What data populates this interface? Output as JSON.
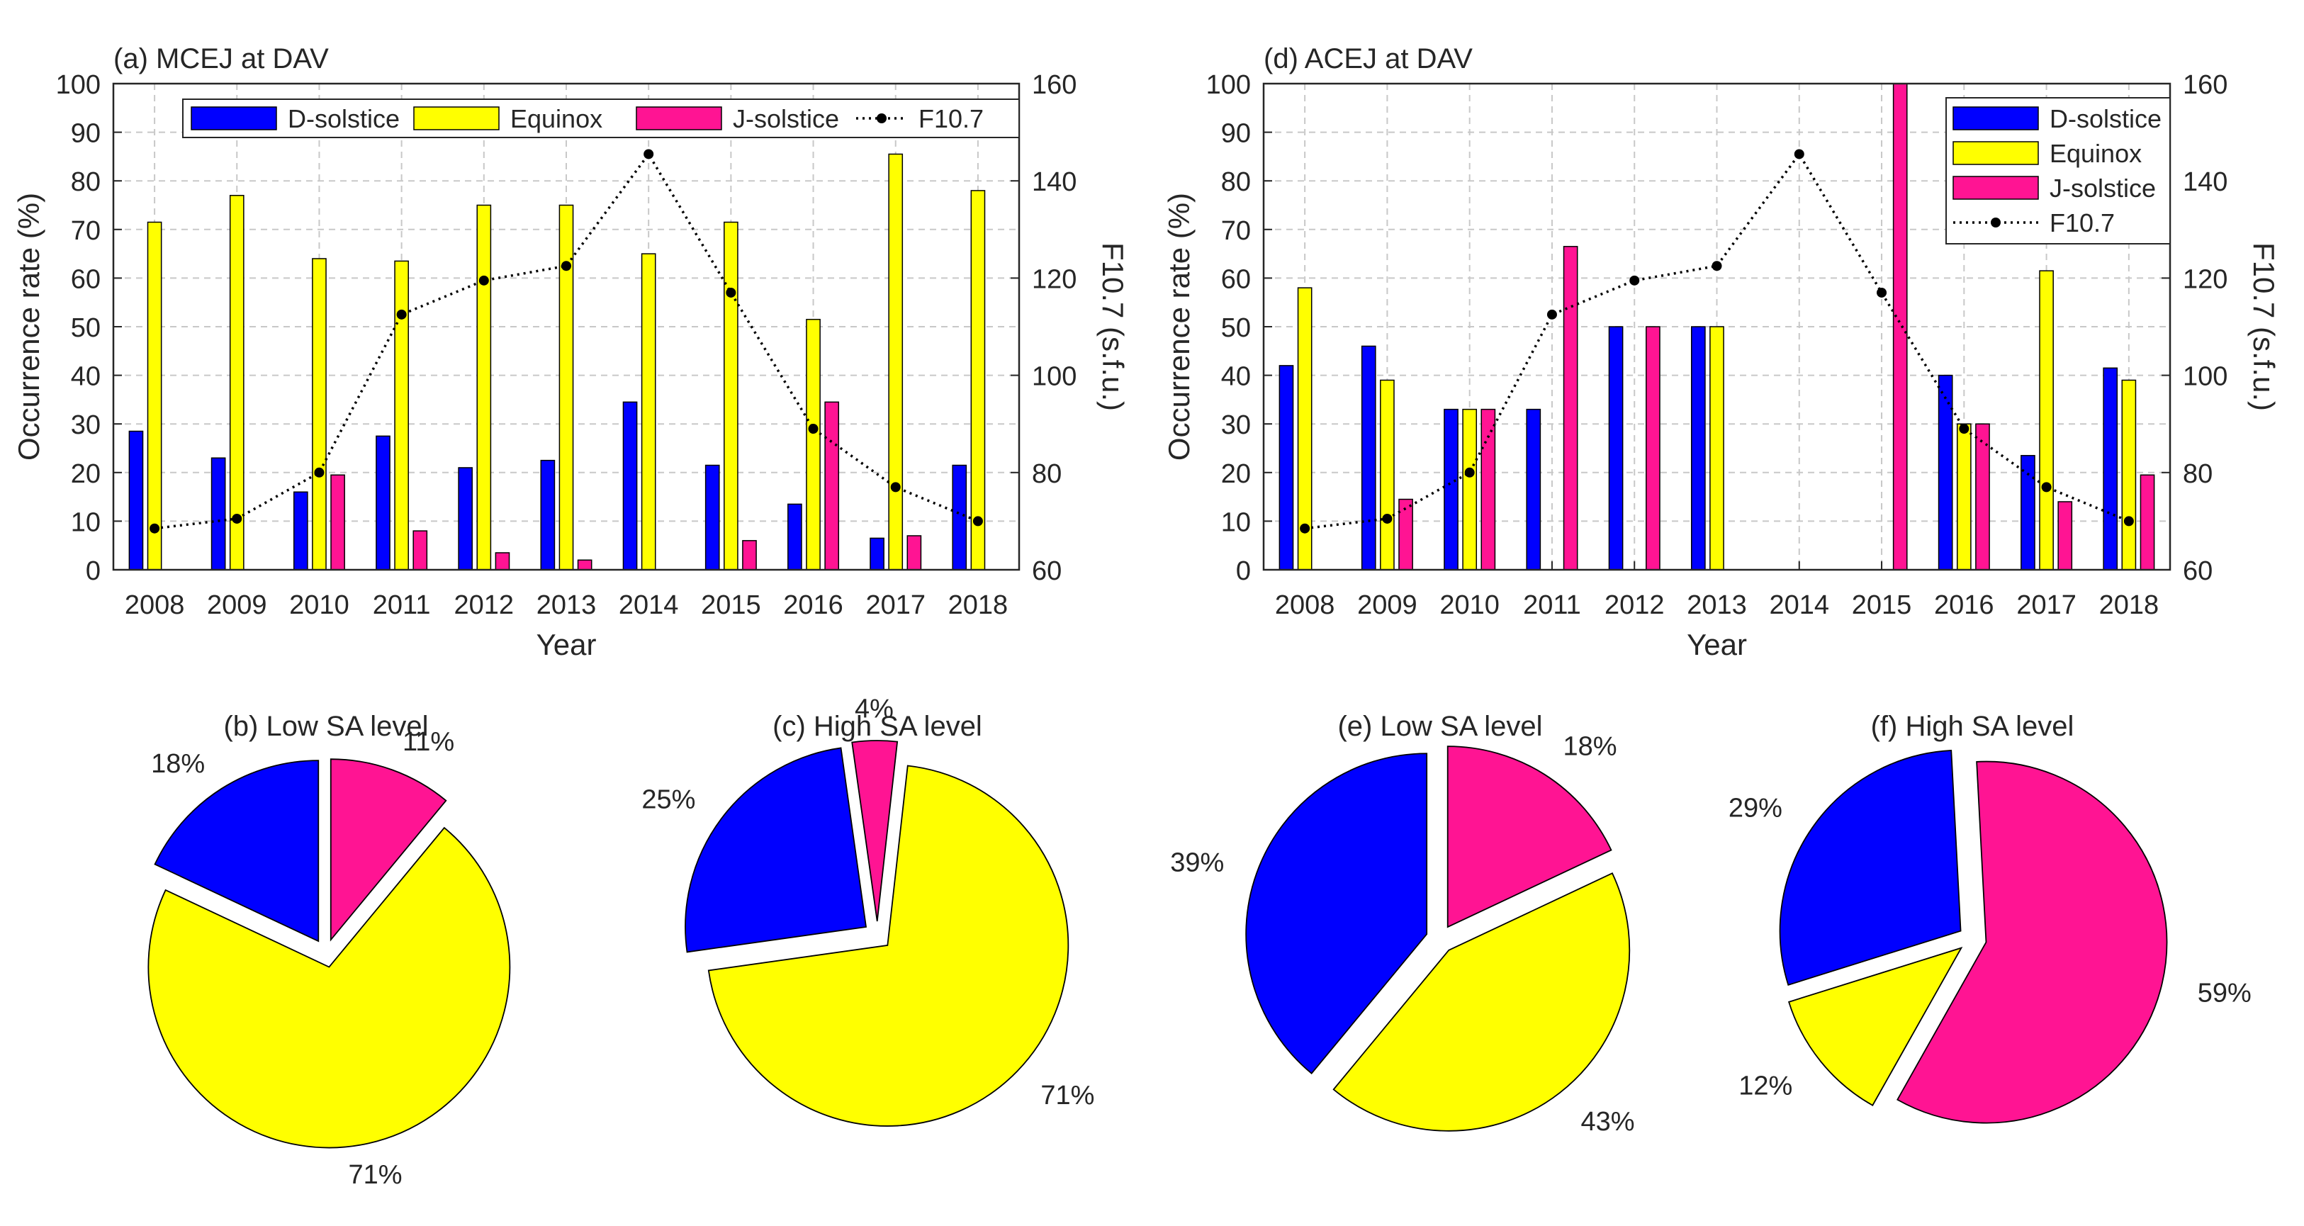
{
  "chart_data": [
    {
      "id": "a",
      "type": "bar",
      "title": "(a) MCEJ at DAV",
      "xlabel": "Year",
      "ylabel": "Occurrence rate (%)",
      "y2label": "F10.7 (s.f.u.)",
      "ylim": [
        0,
        100
      ],
      "y2lim": [
        60,
        160
      ],
      "yticks": [
        "0",
        "10",
        "20",
        "30",
        "40",
        "50",
        "60",
        "70",
        "80",
        "90",
        "100"
      ],
      "y2ticks": [
        "60",
        "80",
        "100",
        "120",
        "140",
        "160"
      ],
      "legend_position": "top",
      "categories": [
        "2008",
        "2009",
        "2010",
        "2011",
        "2012",
        "2013",
        "2014",
        "2015",
        "2016",
        "2017",
        "2018"
      ],
      "series": [
        {
          "name": "D-solstice",
          "color": "#0000ff",
          "values": [
            28.5,
            23,
            16,
            27.5,
            21,
            22.5,
            34.5,
            21.5,
            13.5,
            6.5,
            21.5
          ]
        },
        {
          "name": "Equinox",
          "color": "#ffff00",
          "values": [
            71.5,
            77,
            64,
            63.5,
            75,
            75,
            65,
            71.5,
            51.5,
            85.5,
            78
          ]
        },
        {
          "name": "J-solstice",
          "color": "#ff1493",
          "values": [
            0,
            0,
            19.5,
            8,
            3.5,
            2,
            0,
            6,
            34.5,
            7,
            0
          ]
        }
      ],
      "line": {
        "name": "F10.7",
        "values": [
          68.5,
          70.5,
          80,
          112.5,
          119.5,
          122.5,
          145.5,
          117,
          89,
          77,
          70
        ]
      }
    },
    {
      "id": "d",
      "type": "bar",
      "title": "(d) ACEJ at DAV",
      "xlabel": "Year",
      "ylabel": "Occurrence rate (%)",
      "y2label": "F10.7 (s.f.u.)",
      "ylim": [
        0,
        100
      ],
      "y2lim": [
        60,
        160
      ],
      "yticks": [
        "0",
        "10",
        "20",
        "30",
        "40",
        "50",
        "60",
        "70",
        "80",
        "90",
        "100"
      ],
      "y2ticks": [
        "60",
        "80",
        "100",
        "120",
        "140",
        "160"
      ],
      "legend_position": "top-right",
      "categories": [
        "2008",
        "2009",
        "2010",
        "2011",
        "2012",
        "2013",
        "2014",
        "2015",
        "2016",
        "2017",
        "2018"
      ],
      "series": [
        {
          "name": "D-solstice",
          "color": "#0000ff",
          "values": [
            42,
            46,
            33,
            33,
            50,
            50,
            0,
            0,
            40,
            23.5,
            41.5
          ]
        },
        {
          "name": "Equinox",
          "color": "#ffff00",
          "values": [
            58,
            39,
            33,
            0,
            0,
            50,
            0,
            0,
            30,
            61.5,
            39
          ]
        },
        {
          "name": "J-solstice",
          "color": "#ff1493",
          "values": [
            0,
            14.5,
            33,
            66.5,
            50,
            0,
            0,
            100,
            30,
            14,
            19.5
          ]
        }
      ],
      "line": {
        "name": "F10.7",
        "values": [
          68.5,
          70.5,
          80,
          112.5,
          119.5,
          122.5,
          145.5,
          117,
          89,
          77,
          70
        ]
      }
    },
    {
      "id": "b",
      "type": "pie",
      "title": "(b) Low SA level",
      "slices": [
        {
          "name": "J-solstice",
          "value": 11,
          "label": "11%",
          "color": "#ff1493"
        },
        {
          "name": "Equinox",
          "value": 71,
          "label": "71%",
          "color": "#ffff00"
        },
        {
          "name": "D-solstice",
          "value": 18,
          "label": "18%",
          "color": "#0000ff"
        }
      ]
    },
    {
      "id": "c",
      "type": "pie",
      "title": "(c) High SA level",
      "slices": [
        {
          "name": "J-solstice",
          "value": 4,
          "label": "4%",
          "color": "#ff1493"
        },
        {
          "name": "Equinox",
          "value": 71,
          "label": "71%",
          "color": "#ffff00"
        },
        {
          "name": "D-solstice",
          "value": 25,
          "label": "25%",
          "color": "#0000ff"
        }
      ]
    },
    {
      "id": "e",
      "type": "pie",
      "title": "(e) Low SA level",
      "slices": [
        {
          "name": "J-solstice",
          "value": 18,
          "label": "18%",
          "color": "#ff1493"
        },
        {
          "name": "Equinox",
          "value": 43,
          "label": "43%",
          "color": "#ffff00"
        },
        {
          "name": "D-solstice",
          "value": 39,
          "label": "39%",
          "color": "#0000ff"
        }
      ]
    },
    {
      "id": "f",
      "type": "pie",
      "title": "(f) High SA level",
      "slices": [
        {
          "name": "J-solstice",
          "value": 59,
          "label": "59%",
          "color": "#ff1493"
        },
        {
          "name": "Equinox",
          "value": 12,
          "label": "12%",
          "color": "#ffff00"
        },
        {
          "name": "D-solstice",
          "value": 29,
          "label": "29%",
          "color": "#0000ff"
        }
      ]
    }
  ]
}
